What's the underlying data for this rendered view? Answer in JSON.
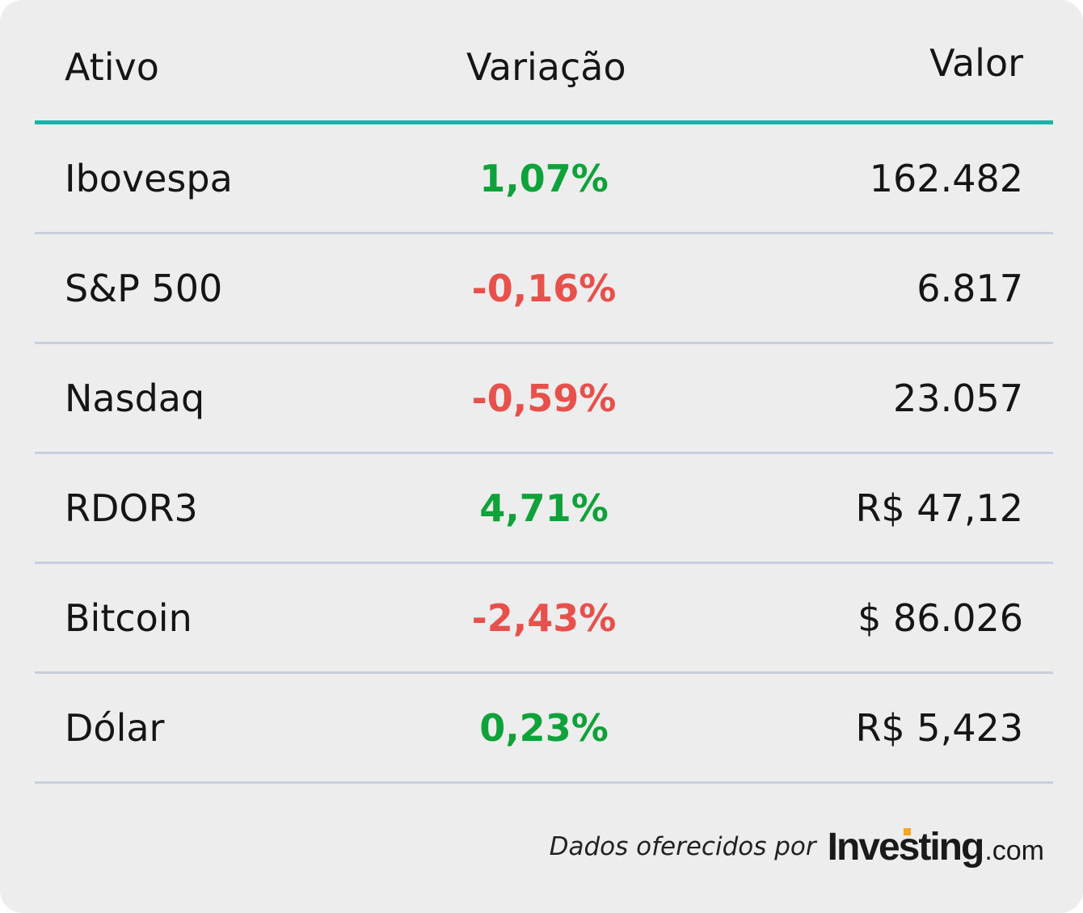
{
  "header": {
    "ativo": "Ativo",
    "variacao": "Variação",
    "valor": "Valor"
  },
  "rows": [
    {
      "name": "Ibovespa",
      "change": "1,07%",
      "value": "162.482",
      "direction": "up"
    },
    {
      "name": "S&P 500",
      "change": "-0,16%",
      "value": "6.817",
      "direction": "down"
    },
    {
      "name": "Nasdaq",
      "change": "-0,59%",
      "value": "23.057",
      "direction": "down"
    },
    {
      "name": "RDOR3",
      "change": "4,71%",
      "value": "R$ 47,12",
      "direction": "up"
    },
    {
      "name": "Bitcoin",
      "change": "-2,43%",
      "value": "$ 86.026",
      "direction": "down"
    },
    {
      "name": "Dólar",
      "change": "0,23%",
      "value": "R$ 5,423",
      "direction": "up"
    }
  ],
  "footer": {
    "text": "Dados oferecidos por",
    "logo_main": "Investing",
    "logo_suffix": ".com"
  },
  "colors": {
    "positive": "#0fa23a",
    "negative": "#e8504b",
    "accent_rule": "#15b6a8",
    "logo_dot": "#f5a623"
  }
}
